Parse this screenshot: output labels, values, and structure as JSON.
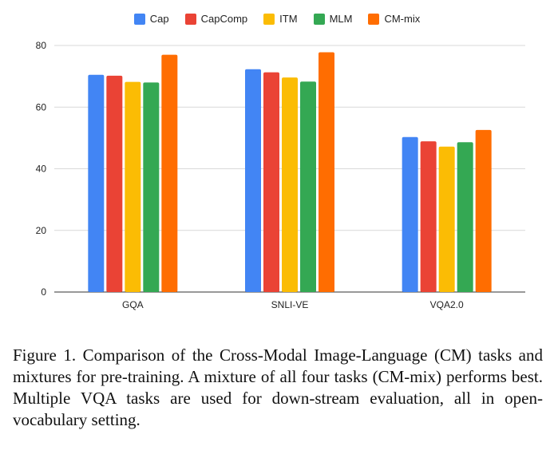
{
  "chart_data": {
    "type": "bar",
    "categories": [
      "GQA",
      "SNLI-VE",
      "VQA2.0"
    ],
    "series": [
      {
        "name": "Cap",
        "color": "#4285f4",
        "values": [
          70.5,
          72.3,
          50.3
        ]
      },
      {
        "name": "CapComp",
        "color": "#ea4335",
        "values": [
          70.2,
          71.3,
          48.9
        ]
      },
      {
        "name": "ITM",
        "color": "#fbbc04",
        "values": [
          68.2,
          69.6,
          47.2
        ]
      },
      {
        "name": "MLM",
        "color": "#34a853",
        "values": [
          68.0,
          68.3,
          48.6
        ]
      },
      {
        "name": "CM-mix",
        "color": "#ff6d01",
        "values": [
          77.0,
          77.8,
          52.6
        ]
      }
    ],
    "yticks": [
      "0",
      "20",
      "40",
      "60",
      "80"
    ],
    "ylim": [
      0,
      80
    ],
    "grid": true,
    "legend_position": "top-center"
  },
  "caption": "Figure 1. Comparison of the Cross-Modal Image-Language (CM) tasks and mixtures for pre-training. A mixture of all four tasks (CM-mix) performs best. Multiple VQA tasks are used for down-stream evaluation, all in open-vocabulary setting."
}
